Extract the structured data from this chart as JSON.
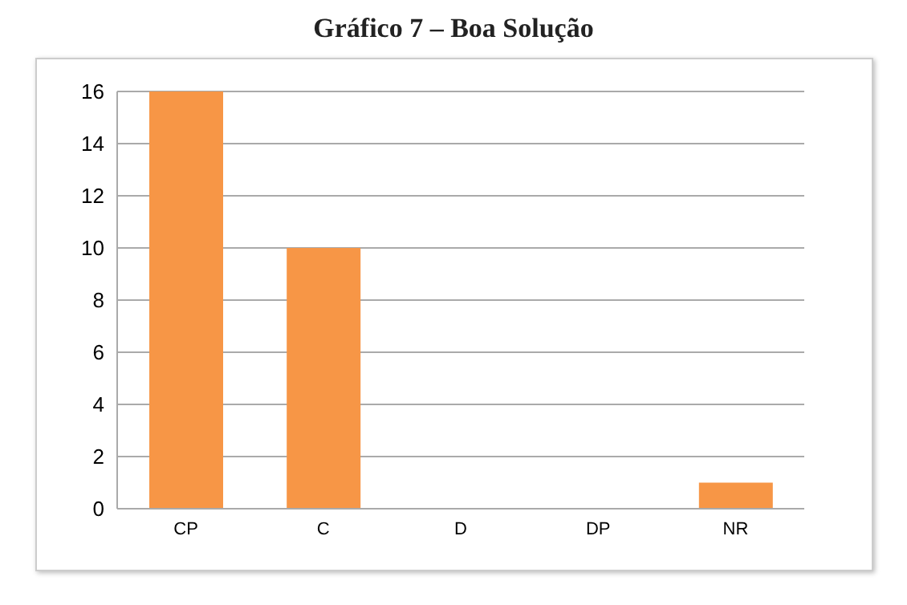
{
  "chart_data": {
    "type": "bar",
    "title": "Gráfico 7 – Boa Solução",
    "categories": [
      "CP",
      "C",
      "D",
      "DP",
      "NR"
    ],
    "values": [
      16,
      10,
      0,
      0,
      1
    ],
    "color": "#f79646",
    "ylim": [
      0,
      16
    ],
    "yticks": [
      0,
      2,
      4,
      6,
      8,
      10,
      12,
      14,
      16
    ],
    "grid": "y"
  }
}
